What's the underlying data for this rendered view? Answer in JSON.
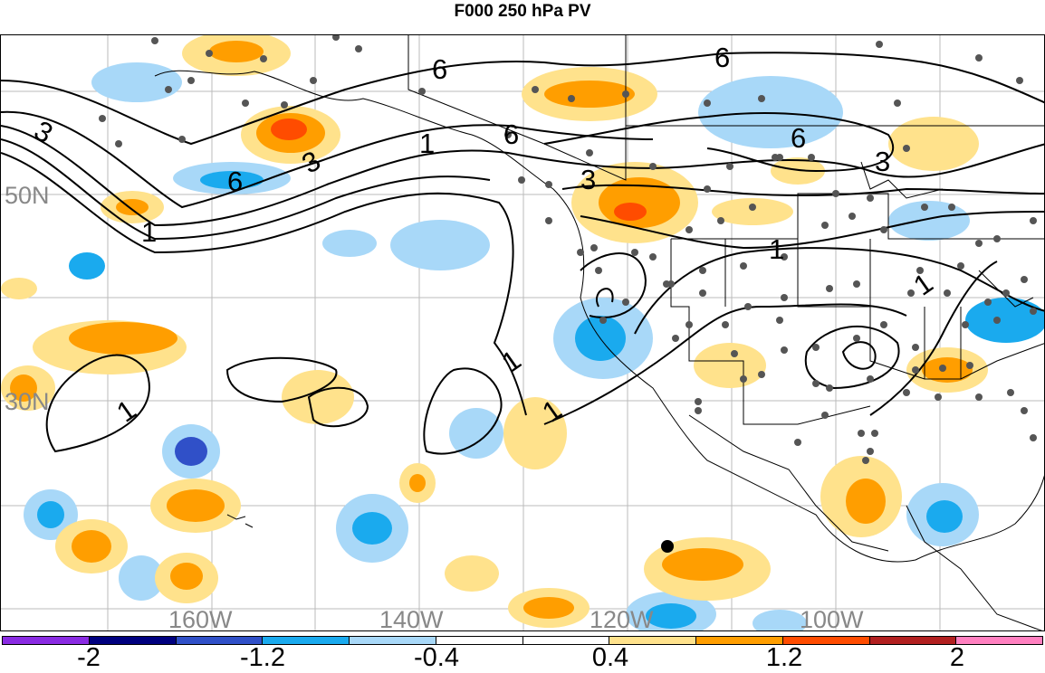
{
  "title": "F000 250 hPa PV",
  "map": {
    "lat_labels": [
      "50N",
      "30N"
    ],
    "lon_labels": [
      "160W",
      "140W",
      "120W",
      "100W"
    ],
    "contour_labels": [
      "6",
      "6",
      "6",
      "6",
      "3",
      "3",
      "3",
      "3",
      "1",
      "1",
      "1",
      "1",
      "1",
      "1",
      "1",
      "6"
    ]
  },
  "colorbar": {
    "tick_labels": [
      "-2",
      "-1.2",
      "-0.4",
      "0.4",
      "1.2",
      "2"
    ],
    "colors": [
      "#8a2be2",
      "#00007f",
      "#3050c8",
      "#1aaaee",
      "#a8d8f8",
      "#ffffff",
      "#ffffff",
      "#ffe28c",
      "#ff9e00",
      "#ff4c00",
      "#b22020",
      "#ff80c0"
    ]
  }
}
